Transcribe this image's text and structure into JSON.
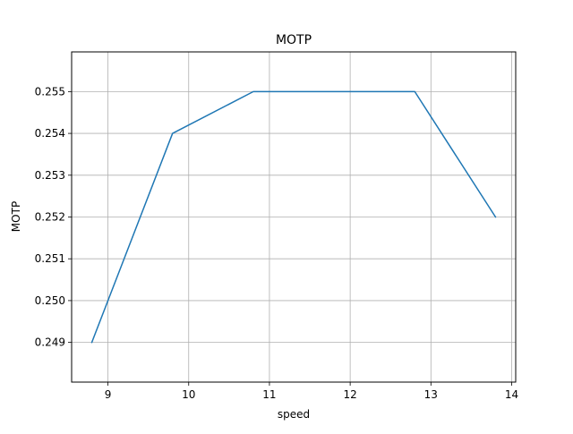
{
  "chart_data": {
    "type": "line",
    "title": "MOTP",
    "xlabel": "speed",
    "ylabel": "MOTP",
    "xlim": [
      8.55,
      14.05
    ],
    "ylim": [
      0.24805,
      0.25595
    ],
    "xticks": [
      9,
      10,
      11,
      12,
      13,
      14
    ],
    "xtick_labels": [
      "9",
      "10",
      "11",
      "12",
      "13",
      "14"
    ],
    "yticks": [
      0.249,
      0.25,
      0.251,
      0.252,
      0.253,
      0.254,
      0.255
    ],
    "ytick_labels": [
      "0.249",
      "0.250",
      "0.251",
      "0.252",
      "0.253",
      "0.254",
      "0.255"
    ],
    "grid": true,
    "series": [
      {
        "color": "#1f77b4",
        "x": [
          8.8,
          9.8,
          10.8,
          11.8,
          12.8,
          13.8
        ],
        "y": [
          0.249,
          0.254,
          0.255,
          0.255,
          0.255,
          0.252
        ]
      }
    ]
  }
}
